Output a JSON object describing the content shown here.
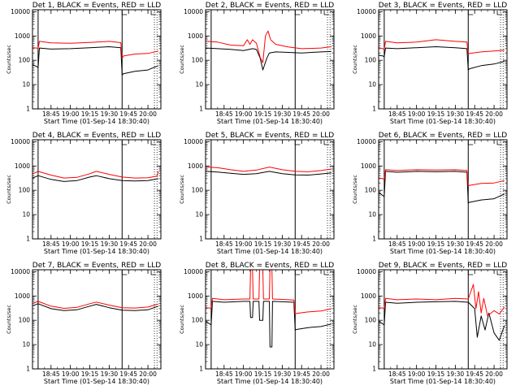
{
  "chart_data": [
    {
      "type": "line",
      "title": "Det 1, BLACK = Events, RED = LLD",
      "xlabel": "Start Time (01-Sep-14 18:30:40)",
      "ylabel": "Counts/sec",
      "log_y": true,
      "ylim": [
        1,
        12000
      ],
      "yticks": [
        "1",
        "10",
        "100",
        "1000",
        "10000"
      ],
      "xlim": [
        "18:30:40",
        "20:10"
      ],
      "xticks": [
        "18:45",
        "19:00",
        "19:15",
        "19:30",
        "19:45",
        "20:00"
      ],
      "markers": {
        "solid": [
          "18:35",
          "19:40"
        ],
        "dotted": [
          "20:05",
          "20:07"
        ]
      },
      "series": [
        {
          "name": "BLACK = Events",
          "color": "#000000",
          "x": [
            "18:31",
            "18:34",
            "18:35",
            "18:36",
            "18:45",
            "19:00",
            "19:15",
            "19:30",
            "19:39",
            "19:40",
            "19:41",
            "19:50",
            "20:00",
            "20:08"
          ],
          "values": [
            65,
            55,
            50,
            320,
            290,
            300,
            330,
            360,
            330,
            25,
            28,
            35,
            40,
            60
          ]
        },
        {
          "name": "RED = LLD",
          "color": "#ff0000",
          "x": [
            "18:31",
            "18:34",
            "18:35",
            "18:36",
            "18:45",
            "19:00",
            "19:15",
            "19:30",
            "19:39",
            "19:40",
            "19:41",
            "19:50",
            "20:00",
            "20:08"
          ],
          "values": [
            330,
            320,
            300,
            600,
            520,
            500,
            540,
            600,
            530,
            120,
            150,
            180,
            190,
            240
          ]
        }
      ]
    },
    {
      "type": "line",
      "title": "Det 2, BLACK = Events, RED = LLD",
      "xlabel": "Start Time (01-Sep-14 18:30:40)",
      "ylabel": "Counts/sec",
      "log_y": true,
      "ylim": [
        1,
        12000
      ],
      "yticks": [
        "1",
        "10",
        "100",
        "1000",
        "10000"
      ],
      "xlim": [
        "18:30:40",
        "20:10"
      ],
      "xticks": [
        "18:45",
        "19:00",
        "19:15",
        "19:30",
        "19:45",
        "20:00"
      ],
      "markers": {
        "solid": [
          "18:35",
          "19:40"
        ],
        "dotted": [
          "20:05",
          "20:07"
        ]
      },
      "series": [
        {
          "name": "BLACK = Events",
          "color": "#000000",
          "x": [
            "18:31",
            "18:40",
            "18:50",
            "19:00",
            "19:07",
            "19:10",
            "19:13",
            "19:15",
            "19:18",
            "19:20",
            "19:25",
            "19:35",
            "19:45",
            "20:00",
            "20:08"
          ],
          "values": [
            320,
            300,
            280,
            250,
            300,
            280,
            120,
            40,
            120,
            200,
            220,
            210,
            200,
            220,
            230
          ]
        },
        {
          "name": "RED = LLD",
          "color": "#ff0000",
          "x": [
            "18:31",
            "18:40",
            "18:50",
            "19:00",
            "19:03",
            "19:05",
            "19:07",
            "19:10",
            "19:13",
            "19:15",
            "19:17",
            "19:19",
            "19:21",
            "19:25",
            "19:35",
            "19:45",
            "20:00",
            "20:08"
          ],
          "values": [
            600,
            560,
            420,
            400,
            700,
            450,
            700,
            500,
            130,
            80,
            1000,
            1600,
            700,
            450,
            350,
            300,
            320,
            360
          ]
        }
      ]
    },
    {
      "type": "line",
      "title": "Det 3, BLACK = Events, RED = LLD",
      "xlabel": "Start Time (01-Sep-14 18:30:40)",
      "ylabel": "Counts/sec",
      "log_y": true,
      "ylim": [
        1,
        12000
      ],
      "yticks": [
        "1",
        "10",
        "100",
        "1000",
        "10000"
      ],
      "xlim": [
        "18:30:40",
        "20:10"
      ],
      "xticks": [
        "18:45",
        "19:00",
        "19:15",
        "19:30",
        "19:45",
        "20:00"
      ],
      "markers": {
        "solid": [
          "18:35",
          "19:40"
        ],
        "dotted": [
          "20:05",
          "20:07"
        ]
      },
      "series": [
        {
          "name": "BLACK = Events",
          "color": "#000000",
          "x": [
            "18:31",
            "18:34",
            "18:35",
            "18:36",
            "18:45",
            "19:00",
            "19:15",
            "19:30",
            "19:39",
            "19:40",
            "19:41",
            "19:50",
            "20:00",
            "20:08"
          ],
          "values": [
            160,
            150,
            140,
            320,
            300,
            330,
            360,
            330,
            300,
            40,
            45,
            60,
            70,
            90
          ]
        },
        {
          "name": "RED = LLD",
          "color": "#ff0000",
          "x": [
            "18:31",
            "18:34",
            "18:35",
            "18:36",
            "18:45",
            "19:00",
            "19:15",
            "19:30",
            "19:39",
            "19:40",
            "19:41",
            "19:50",
            "20:00",
            "20:08"
          ],
          "values": [
            330,
            300,
            280,
            600,
            520,
            560,
            700,
            600,
            560,
            180,
            190,
            220,
            240,
            260
          ]
        }
      ]
    },
    {
      "type": "line",
      "title": "Det 4, BLACK = Events, RED = LLD",
      "xlabel": "Start Time (01-Sep-14 18:30:40)",
      "ylabel": "Counts/sec",
      "log_y": true,
      "ylim": [
        1,
        12000
      ],
      "yticks": [
        "1",
        "10",
        "100",
        "1000",
        "10000"
      ],
      "xlim": [
        "18:30:40",
        "20:10"
      ],
      "xticks": [
        "18:45",
        "19:00",
        "19:15",
        "19:30",
        "19:45",
        "20:00"
      ],
      "markers": {
        "solid": [
          "18:35",
          "19:40"
        ],
        "dotted": [
          "20:05",
          "20:07"
        ]
      },
      "series": [
        {
          "name": "BLACK = Events",
          "color": "#000000",
          "x": [
            "18:31",
            "18:35",
            "18:45",
            "18:55",
            "19:05",
            "19:15",
            "19:20",
            "19:30",
            "19:40",
            "19:50",
            "20:00",
            "20:08"
          ],
          "values": [
            320,
            400,
            280,
            230,
            250,
            350,
            400,
            300,
            250,
            240,
            250,
            300
          ]
        },
        {
          "name": "RED = LLD",
          "color": "#ff0000",
          "x": [
            "18:31",
            "18:35",
            "18:45",
            "18:55",
            "19:05",
            "19:15",
            "19:20",
            "19:30",
            "19:40",
            "19:50",
            "20:00",
            "20:07",
            "20:08"
          ],
          "values": [
            480,
            600,
            420,
            320,
            340,
            480,
            600,
            450,
            350,
            320,
            330,
            380,
            600
          ]
        }
      ]
    },
    {
      "type": "line",
      "title": "Det 5, BLACK = Events, RED = LLD",
      "xlabel": "Start Time (01-Sep-14 18:30:40)",
      "ylabel": "Counts/sec",
      "log_y": true,
      "ylim": [
        1,
        12000
      ],
      "yticks": [
        "1",
        "10",
        "100",
        "1000",
        "10000"
      ],
      "xlim": [
        "18:30:40",
        "20:10"
      ],
      "xticks": [
        "18:45",
        "19:00",
        "19:15",
        "19:30",
        "19:45",
        "20:00"
      ],
      "markers": {
        "solid": [
          "18:35",
          "19:40"
        ],
        "dotted": [
          "20:05",
          "20:07"
        ]
      },
      "series": [
        {
          "name": "BLACK = Events",
          "color": "#000000",
          "x": [
            "18:31",
            "18:40",
            "18:50",
            "19:00",
            "19:10",
            "19:20",
            "19:30",
            "19:40",
            "19:50",
            "20:00",
            "20:08"
          ],
          "values": [
            600,
            560,
            500,
            450,
            480,
            600,
            480,
            430,
            420,
            470,
            520
          ]
        },
        {
          "name": "RED = LLD",
          "color": "#ff0000",
          "x": [
            "18:31",
            "18:40",
            "18:50",
            "19:00",
            "19:10",
            "19:20",
            "19:30",
            "19:40",
            "19:50",
            "20:00",
            "20:08"
          ],
          "values": [
            900,
            850,
            700,
            600,
            680,
            900,
            700,
            600,
            580,
            650,
            750
          ]
        }
      ]
    },
    {
      "type": "line",
      "title": "Det 6, BLACK = Events, RED = LLD",
      "xlabel": "Start Time (01-Sep-14 18:30:40)",
      "ylabel": "Counts/sec",
      "log_y": true,
      "ylim": [
        1,
        12000
      ],
      "yticks": [
        "1",
        "10",
        "100",
        "1000",
        "10000"
      ],
      "xlim": [
        "18:30:40",
        "20:10"
      ],
      "xticks": [
        "18:45",
        "19:00",
        "19:15",
        "19:30",
        "19:45",
        "20:00"
      ],
      "markers": {
        "solid": [
          "18:35",
          "19:40"
        ],
        "dotted": [
          "20:05",
          "20:07"
        ]
      },
      "series": [
        {
          "name": "BLACK = Events",
          "color": "#000000",
          "x": [
            "18:31",
            "18:34",
            "18:35",
            "18:36",
            "18:45",
            "19:00",
            "19:15",
            "19:30",
            "19:39",
            "19:40",
            "19:41",
            "19:50",
            "20:00",
            "20:08"
          ],
          "values": [
            80,
            60,
            55,
            600,
            550,
            600,
            580,
            600,
            550,
            30,
            32,
            40,
            45,
            70
          ]
        },
        {
          "name": "RED = LLD",
          "color": "#ff0000",
          "x": [
            "18:31",
            "18:34",
            "18:35",
            "18:36",
            "18:45",
            "19:00",
            "19:15",
            "19:30",
            "19:39",
            "19:40",
            "19:41",
            "19:50",
            "20:00",
            "20:08"
          ],
          "values": [
            320,
            300,
            280,
            700,
            650,
            700,
            680,
            700,
            650,
            150,
            160,
            190,
            200,
            250
          ]
        }
      ]
    },
    {
      "type": "line",
      "title": "Det 7, BLACK = Events, RED = LLD",
      "xlabel": "Start Time (01-Sep-14 18:30:40)",
      "ylabel": "Counts/sec",
      "log_y": true,
      "ylim": [
        1,
        12000
      ],
      "yticks": [
        "1",
        "10",
        "100",
        "1000",
        "10000"
      ],
      "xlim": [
        "18:30:40",
        "20:10"
      ],
      "xticks": [
        "18:45",
        "19:00",
        "19:15",
        "19:30",
        "19:45",
        "20:00"
      ],
      "markers": {
        "solid": [
          "18:35",
          "19:40"
        ],
        "dotted": [
          "20:05",
          "20:07"
        ]
      },
      "series": [
        {
          "name": "BLACK = Events",
          "color": "#000000",
          "x": [
            "18:31",
            "18:35",
            "18:45",
            "18:55",
            "19:05",
            "19:15",
            "19:20",
            "19:30",
            "19:40",
            "19:50",
            "20:00",
            "20:08"
          ],
          "values": [
            400,
            480,
            300,
            250,
            270,
            380,
            450,
            330,
            260,
            250,
            270,
            380
          ]
        },
        {
          "name": "RED = LLD",
          "color": "#ff0000",
          "x": [
            "18:31",
            "18:35",
            "18:45",
            "18:55",
            "19:05",
            "19:15",
            "19:20",
            "19:30",
            "19:40",
            "19:50",
            "20:00",
            "20:08"
          ],
          "values": [
            500,
            600,
            380,
            310,
            340,
            480,
            560,
            420,
            330,
            320,
            350,
            470
          ]
        }
      ]
    },
    {
      "type": "line",
      "title": "Det 8, BLACK = Events, RED = LLD",
      "xlabel": "Start Time (01-Sep-14 18:30:40)",
      "ylabel": "Counts/sec",
      "log_y": true,
      "ylim": [
        1,
        12000
      ],
      "yticks": [
        "1",
        "10",
        "100",
        "1000",
        "10000"
      ],
      "xlim": [
        "18:30:40",
        "20:10"
      ],
      "xticks": [
        "18:45",
        "19:00",
        "19:15",
        "19:30",
        "19:45",
        "20:00"
      ],
      "markers": {
        "solid": [
          "18:35",
          "19:40"
        ],
        "dotted": [
          "20:05",
          "20:07"
        ]
      },
      "series": [
        {
          "name": "BLACK = Events",
          "color": "#000000",
          "x": [
            "18:31",
            "18:34",
            "18:35",
            "18:36",
            "18:45",
            "19:00",
            "19:05",
            "19:05.5",
            "19:07",
            "19:07.5",
            "19:12",
            "19:12.5",
            "19:15",
            "19:15.5",
            "19:20",
            "19:20.5",
            "19:22",
            "19:22.5",
            "19:30",
            "19:39",
            "19:40",
            "19:41",
            "19:50",
            "20:00",
            "20:08"
          ],
          "values": [
            90,
            70,
            65,
            600,
            550,
            600,
            600,
            130,
            130,
            600,
            600,
            100,
            100,
            600,
            600,
            8,
            8,
            600,
            580,
            550,
            40,
            42,
            50,
            55,
            70
          ]
        },
        {
          "name": "RED = LLD",
          "color": "#ff0000",
          "x": [
            "18:31",
            "18:34",
            "18:35",
            "18:36",
            "18:45",
            "19:00",
            "19:05",
            "19:05.5",
            "19:07",
            "19:07.5",
            "19:12",
            "19:12.5",
            "19:15",
            "19:15.5",
            "19:20",
            "19:20.5",
            "19:22",
            "19:22.5",
            "19:30",
            "19:39",
            "19:40",
            "19:41",
            "19:50",
            "20:00",
            "20:08"
          ],
          "values": [
            330,
            320,
            300,
            800,
            700,
            750,
            750,
            12000,
            12000,
            750,
            750,
            12000,
            12000,
            750,
            750,
            12000,
            12000,
            750,
            720,
            680,
            180,
            190,
            220,
            240,
            300
          ]
        }
      ]
    },
    {
      "type": "line",
      "title": "Det 9, BLACK = Events, RED = LLD",
      "xlabel": "Start Time (01-Sep-14 18:30:40)",
      "ylabel": "Counts/sec",
      "log_y": true,
      "ylim": [
        1,
        12000
      ],
      "yticks": [
        "1",
        "10",
        "100",
        "1000",
        "10000"
      ],
      "xlim": [
        "18:30:40",
        "20:10"
      ],
      "xticks": [
        "18:45",
        "19:00",
        "19:15",
        "19:30",
        "19:45",
        "20:00"
      ],
      "markers": {
        "solid": [
          "18:35",
          "19:40"
        ],
        "dotted": [
          "20:05",
          "20:07"
        ]
      },
      "series": [
        {
          "name": "BLACK = Events",
          "color": "#000000",
          "x": [
            "18:31",
            "18:34",
            "18:35",
            "18:36",
            "18:45",
            "19:00",
            "19:15",
            "19:30",
            "19:40",
            "19:45",
            "19:47",
            "19:50",
            "19:53",
            "19:56",
            "20:00",
            "20:04",
            "20:08"
          ],
          "values": [
            90,
            70,
            65,
            550,
            500,
            550,
            580,
            600,
            550,
            300,
            20,
            150,
            40,
            200,
            30,
            15,
            60
          ]
        },
        {
          "name": "RED = LLD",
          "color": "#ff0000",
          "x": [
            "18:31",
            "18:34",
            "18:35",
            "18:36",
            "18:45",
            "19:00",
            "19:15",
            "19:30",
            "19:40",
            "19:44",
            "19:46",
            "19:48",
            "19:50",
            "19:52",
            "19:55",
            "20:00",
            "20:04",
            "20:08"
          ],
          "values": [
            330,
            320,
            300,
            800,
            700,
            750,
            700,
            800,
            750,
            3000,
            300,
            1500,
            200,
            800,
            150,
            250,
            180,
            350
          ]
        }
      ]
    }
  ]
}
